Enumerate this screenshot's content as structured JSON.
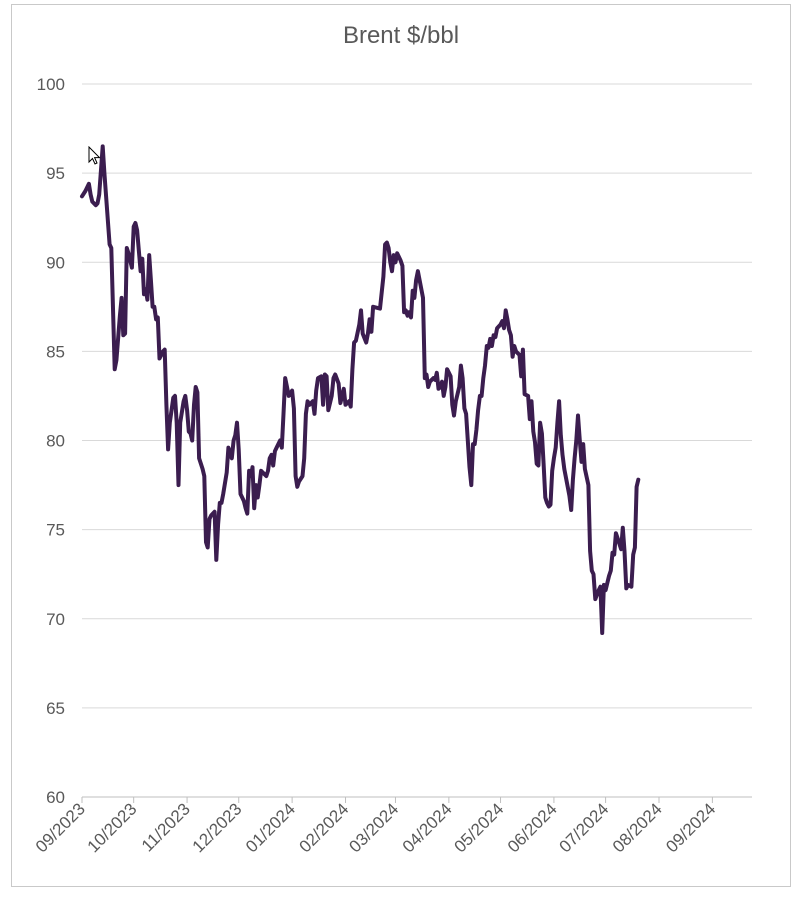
{
  "chart_data": {
    "type": "line",
    "title": "Brent $/bbl",
    "xlabel": "",
    "ylabel": "",
    "ylim": [
      60,
      100
    ],
    "y_ticks": [
      60,
      65,
      70,
      75,
      80,
      85,
      90,
      95,
      100
    ],
    "x_tick_labels": [
      "09/2023",
      "10/2023",
      "11/2023",
      "12/2023",
      "01/2024",
      "02/2024",
      "03/2024",
      "04/2024",
      "05/2024",
      "06/2024",
      "07/2024",
      "08/2024",
      "09/2024"
    ],
    "x_range": [
      "2023-09-01",
      "2024-09-24"
    ],
    "grid": "horizontal",
    "legend": "none",
    "series": [
      {
        "color": "#3b1d4f",
        "points": [
          [
            "2023-09-01",
            93.7
          ],
          [
            "2023-09-03",
            94.0
          ],
          [
            "2023-09-05",
            94.4
          ],
          [
            "2023-09-06",
            93.8
          ],
          [
            "2023-09-07",
            93.4
          ],
          [
            "2023-09-09",
            93.2
          ],
          [
            "2023-09-10",
            93.3
          ],
          [
            "2023-09-11",
            93.8
          ],
          [
            "2023-09-13",
            96.5
          ],
          [
            "2023-09-14",
            95.0
          ],
          [
            "2023-09-17",
            91.0
          ],
          [
            "2023-09-18",
            90.8
          ],
          [
            "2023-09-20",
            84.0
          ],
          [
            "2023-09-21",
            84.5
          ],
          [
            "2023-09-23",
            87.0
          ],
          [
            "2023-09-24",
            88.0
          ],
          [
            "2023-09-25",
            85.9
          ],
          [
            "2023-09-26",
            86.0
          ],
          [
            "2023-09-27",
            90.8
          ],
          [
            "2023-09-28",
            90.5
          ],
          [
            "2023-09-30",
            89.7
          ],
          [
            "2023-10-01",
            92.0
          ],
          [
            "2023-10-02",
            92.2
          ],
          [
            "2023-10-03",
            91.8
          ],
          [
            "2023-10-05",
            89.5
          ],
          [
            "2023-10-06",
            90.2
          ],
          [
            "2023-10-07",
            88.2
          ],
          [
            "2023-10-08",
            88.5
          ],
          [
            "2023-10-09",
            87.9
          ],
          [
            "2023-10-10",
            90.4
          ],
          [
            "2023-10-11",
            89.0
          ],
          [
            "2023-10-12",
            87.5
          ],
          [
            "2023-10-13",
            87.5
          ],
          [
            "2023-10-14",
            86.8
          ],
          [
            "2023-10-15",
            86.9
          ],
          [
            "2023-10-16",
            84.6
          ],
          [
            "2023-10-18",
            85.0
          ],
          [
            "2023-10-19",
            85.1
          ],
          [
            "2023-10-20",
            82.0
          ],
          [
            "2023-10-21",
            79.5
          ],
          [
            "2023-10-22",
            81.0
          ],
          [
            "2023-10-24",
            82.4
          ],
          [
            "2023-10-25",
            82.5
          ],
          [
            "2023-10-26",
            81.0
          ],
          [
            "2023-10-27",
            77.5
          ],
          [
            "2023-10-28",
            81.0
          ],
          [
            "2023-10-30",
            82.2
          ],
          [
            "2023-10-31",
            82.5
          ],
          [
            "2023-11-01",
            81.7
          ],
          [
            "2023-11-02",
            80.5
          ],
          [
            "2023-11-03",
            80.4
          ],
          [
            "2023-11-04",
            80.0
          ],
          [
            "2023-11-05",
            82.0
          ],
          [
            "2023-11-06",
            83.0
          ],
          [
            "2023-11-07",
            82.7
          ],
          [
            "2023-11-08",
            79.0
          ],
          [
            "2023-11-10",
            78.4
          ],
          [
            "2023-11-11",
            78.0
          ],
          [
            "2023-11-12",
            74.3
          ],
          [
            "2023-11-13",
            74.0
          ],
          [
            "2023-11-14",
            75.6
          ],
          [
            "2023-11-15",
            75.8
          ],
          [
            "2023-11-17",
            76.0
          ],
          [
            "2023-11-18",
            73.3
          ],
          [
            "2023-11-19",
            75.3
          ],
          [
            "2023-11-20",
            76.5
          ],
          [
            "2023-11-21",
            76.5
          ],
          [
            "2023-11-22",
            77.0
          ],
          [
            "2023-11-24",
            78.2
          ],
          [
            "2023-11-25",
            79.6
          ],
          [
            "2023-11-27",
            79.0
          ],
          [
            "2023-11-28",
            80.0
          ],
          [
            "2023-11-29",
            80.3
          ],
          [
            "2023-11-30",
            81.0
          ],
          [
            "2023-12-01",
            79.5
          ],
          [
            "2023-12-02",
            77.0
          ],
          [
            "2023-12-04",
            76.6
          ],
          [
            "2023-12-05",
            76.2
          ],
          [
            "2023-12-06",
            75.9
          ],
          [
            "2023-12-07",
            78.3
          ],
          [
            "2023-12-08",
            78.0
          ],
          [
            "2023-12-09",
            78.5
          ],
          [
            "2023-12-10",
            76.2
          ],
          [
            "2023-12-11",
            77.5
          ],
          [
            "2023-12-12",
            76.8
          ],
          [
            "2023-12-13",
            77.5
          ],
          [
            "2023-12-14",
            78.3
          ],
          [
            "2023-12-15",
            78.2
          ],
          [
            "2023-12-17",
            78.0
          ],
          [
            "2023-12-18",
            78.3
          ],
          [
            "2023-12-19",
            79.0
          ],
          [
            "2023-12-20",
            79.2
          ],
          [
            "2023-12-21",
            78.6
          ],
          [
            "2023-12-22",
            79.4
          ],
          [
            "2023-12-23",
            79.6
          ],
          [
            "2023-12-25",
            80.0
          ],
          [
            "2023-12-26",
            79.6
          ],
          [
            "2023-12-27",
            81.5
          ],
          [
            "2023-12-28",
            83.5
          ],
          [
            "2023-12-29",
            83.0
          ],
          [
            "2023-12-30",
            82.5
          ],
          [
            "2024-01-01",
            82.8
          ],
          [
            "2024-01-02",
            81.8
          ],
          [
            "2024-01-03",
            78.0
          ],
          [
            "2024-01-04",
            77.4
          ],
          [
            "2024-01-05",
            77.7
          ],
          [
            "2024-01-07",
            78.0
          ],
          [
            "2024-01-08",
            79.0
          ],
          [
            "2024-01-09",
            81.5
          ],
          [
            "2024-01-10",
            82.2
          ],
          [
            "2024-01-11",
            82.0
          ],
          [
            "2024-01-13",
            82.2
          ],
          [
            "2024-01-14",
            81.5
          ],
          [
            "2024-01-15",
            82.8
          ],
          [
            "2024-01-16",
            83.5
          ],
          [
            "2024-01-18",
            83.6
          ],
          [
            "2024-01-19",
            82.0
          ],
          [
            "2024-01-20",
            83.7
          ],
          [
            "2024-01-21",
            83.6
          ],
          [
            "2024-01-22",
            81.7
          ],
          [
            "2024-01-24",
            82.5
          ],
          [
            "2024-01-25",
            83.5
          ],
          [
            "2024-01-26",
            83.7
          ],
          [
            "2024-01-28",
            83.2
          ],
          [
            "2024-01-29",
            82.1
          ],
          [
            "2024-01-30",
            82.5
          ],
          [
            "2024-01-31",
            82.9
          ],
          [
            "2024-02-01",
            82.0
          ],
          [
            "2024-02-02",
            82.1
          ],
          [
            "2024-02-03",
            82.2
          ],
          [
            "2024-02-04",
            81.9
          ],
          [
            "2024-02-05",
            84.0
          ],
          [
            "2024-02-06",
            85.5
          ],
          [
            "2024-02-07",
            85.6
          ],
          [
            "2024-02-09",
            86.5
          ],
          [
            "2024-02-10",
            87.3
          ],
          [
            "2024-02-11",
            86.0
          ],
          [
            "2024-02-13",
            85.5
          ],
          [
            "2024-02-14",
            86.0
          ],
          [
            "2024-02-15",
            86.8
          ],
          [
            "2024-02-16",
            86.1
          ],
          [
            "2024-02-17",
            87.5
          ],
          [
            "2024-02-21",
            87.4
          ],
          [
            "2024-02-23",
            89.2
          ],
          [
            "2024-02-24",
            91.0
          ],
          [
            "2024-02-25",
            91.1
          ],
          [
            "2024-02-26",
            90.8
          ],
          [
            "2024-02-27",
            90.0
          ],
          [
            "2024-02-28",
            89.5
          ],
          [
            "2024-02-29",
            90.4
          ],
          [
            "2024-03-01",
            90.0
          ],
          [
            "2024-03-02",
            90.5
          ],
          [
            "2024-03-04",
            90.1
          ],
          [
            "2024-03-05",
            89.8
          ],
          [
            "2024-03-06",
            87.2
          ],
          [
            "2024-03-07",
            87.3
          ],
          [
            "2024-03-08",
            87.0
          ],
          [
            "2024-03-09",
            87.2
          ],
          [
            "2024-03-10",
            86.9
          ],
          [
            "2024-03-11",
            88.4
          ],
          [
            "2024-03-12",
            88.0
          ],
          [
            "2024-03-13",
            89.0
          ],
          [
            "2024-03-14",
            89.5
          ],
          [
            "2024-03-15",
            89.0
          ],
          [
            "2024-03-17",
            88.0
          ],
          [
            "2024-03-18",
            83.5
          ],
          [
            "2024-03-19",
            83.7
          ],
          [
            "2024-03-20",
            83.0
          ],
          [
            "2024-03-21",
            83.3
          ],
          [
            "2024-03-23",
            83.5
          ],
          [
            "2024-03-24",
            83.4
          ],
          [
            "2024-03-25",
            83.8
          ],
          [
            "2024-03-26",
            82.9
          ],
          [
            "2024-03-27",
            83.0
          ],
          [
            "2024-03-28",
            83.3
          ],
          [
            "2024-03-29",
            82.5
          ],
          [
            "2024-03-30",
            83.0
          ],
          [
            "2024-03-31",
            84.0
          ],
          [
            "2024-04-01",
            83.8
          ],
          [
            "2024-04-02",
            83.6
          ],
          [
            "2024-04-03",
            82.0
          ],
          [
            "2024-04-04",
            81.4
          ],
          [
            "2024-04-05",
            82.2
          ],
          [
            "2024-04-06",
            82.6
          ],
          [
            "2024-04-07",
            83.0
          ],
          [
            "2024-04-08",
            84.2
          ],
          [
            "2024-04-09",
            83.5
          ],
          [
            "2024-04-10",
            81.8
          ],
          [
            "2024-04-11",
            81.5
          ],
          [
            "2024-04-12",
            80.0
          ],
          [
            "2024-04-13",
            78.5
          ],
          [
            "2024-04-14",
            77.5
          ],
          [
            "2024-04-15",
            79.8
          ],
          [
            "2024-04-16",
            79.8
          ],
          [
            "2024-04-17",
            80.6
          ],
          [
            "2024-04-18",
            81.7
          ],
          [
            "2024-04-19",
            82.5
          ],
          [
            "2024-04-20",
            82.5
          ],
          [
            "2024-04-21",
            83.5
          ],
          [
            "2024-04-22",
            84.2
          ],
          [
            "2024-04-23",
            85.3
          ],
          [
            "2024-04-24",
            85.2
          ],
          [
            "2024-04-25",
            85.7
          ],
          [
            "2024-04-26",
            85.3
          ],
          [
            "2024-04-27",
            85.9
          ],
          [
            "2024-04-28",
            85.8
          ],
          [
            "2024-04-29",
            86.3
          ],
          [
            "2024-04-30",
            86.4
          ],
          [
            "2024-05-01",
            86.5
          ],
          [
            "2024-05-02",
            86.7
          ],
          [
            "2024-05-03",
            86.3
          ],
          [
            "2024-05-04",
            87.3
          ],
          [
            "2024-05-05",
            86.8
          ],
          [
            "2024-05-06",
            86.2
          ],
          [
            "2024-05-07",
            85.9
          ],
          [
            "2024-05-08",
            84.7
          ],
          [
            "2024-05-09",
            85.3
          ],
          [
            "2024-05-10",
            85.0
          ],
          [
            "2024-05-12",
            84.8
          ],
          [
            "2024-05-13",
            83.6
          ],
          [
            "2024-05-14",
            85.1
          ],
          [
            "2024-05-15",
            82.6
          ],
          [
            "2024-05-17",
            82.5
          ],
          [
            "2024-05-18",
            81.2
          ],
          [
            "2024-05-19",
            82.2
          ],
          [
            "2024-05-20",
            80.5
          ],
          [
            "2024-05-21",
            79.9
          ],
          [
            "2024-05-22",
            78.7
          ],
          [
            "2024-05-23",
            78.6
          ],
          [
            "2024-05-24",
            81.0
          ],
          [
            "2024-05-25",
            80.4
          ],
          [
            "2024-05-26",
            78.7
          ],
          [
            "2024-05-27",
            76.8
          ],
          [
            "2024-05-28",
            76.5
          ],
          [
            "2024-05-29",
            76.3
          ],
          [
            "2024-05-30",
            76.4
          ],
          [
            "2024-05-31",
            78.3
          ],
          [
            "2024-06-01",
            79.0
          ],
          [
            "2024-06-02",
            79.6
          ],
          [
            "2024-06-03",
            81.0
          ],
          [
            "2024-06-04",
            82.2
          ],
          [
            "2024-06-05",
            80.3
          ],
          [
            "2024-06-06",
            79.2
          ],
          [
            "2024-06-07",
            78.4
          ],
          [
            "2024-06-09",
            77.4
          ],
          [
            "2024-06-10",
            76.9
          ],
          [
            "2024-06-11",
            76.1
          ],
          [
            "2024-06-12",
            77.8
          ],
          [
            "2024-06-13",
            79.0
          ],
          [
            "2024-06-14",
            80.0
          ],
          [
            "2024-06-15",
            81.4
          ],
          [
            "2024-06-16",
            80.0
          ],
          [
            "2024-06-17",
            78.8
          ],
          [
            "2024-06-18",
            79.8
          ],
          [
            "2024-06-19",
            78.4
          ],
          [
            "2024-06-21",
            77.5
          ],
          [
            "2024-06-22",
            73.8
          ],
          [
            "2024-06-23",
            72.7
          ],
          [
            "2024-06-24",
            72.5
          ],
          [
            "2024-06-25",
            71.1
          ],
          [
            "2024-06-27",
            71.6
          ],
          [
            "2024-06-28",
            71.8
          ],
          [
            "2024-06-29",
            69.2
          ],
          [
            "2024-06-30",
            71.9
          ],
          [
            "2024-07-01",
            71.6
          ],
          [
            "2024-07-03",
            72.4
          ],
          [
            "2024-07-04",
            72.7
          ],
          [
            "2024-07-05",
            73.7
          ],
          [
            "2024-07-06",
            73.6
          ],
          [
            "2024-07-07",
            74.8
          ],
          [
            "2024-07-08",
            74.5
          ],
          [
            "2024-07-10",
            73.9
          ],
          [
            "2024-07-11",
            75.1
          ],
          [
            "2024-07-12",
            73.8
          ],
          [
            "2024-07-13",
            71.7
          ],
          [
            "2024-07-14",
            71.9
          ],
          [
            "2024-07-16",
            71.8
          ],
          [
            "2024-07-17",
            73.6
          ],
          [
            "2024-07-18",
            74.0
          ],
          [
            "2024-07-19",
            77.4
          ],
          [
            "2024-07-20",
            77.8
          ]
        ]
      }
    ]
  },
  "cursor_icon": "mouse-pointer-icon"
}
